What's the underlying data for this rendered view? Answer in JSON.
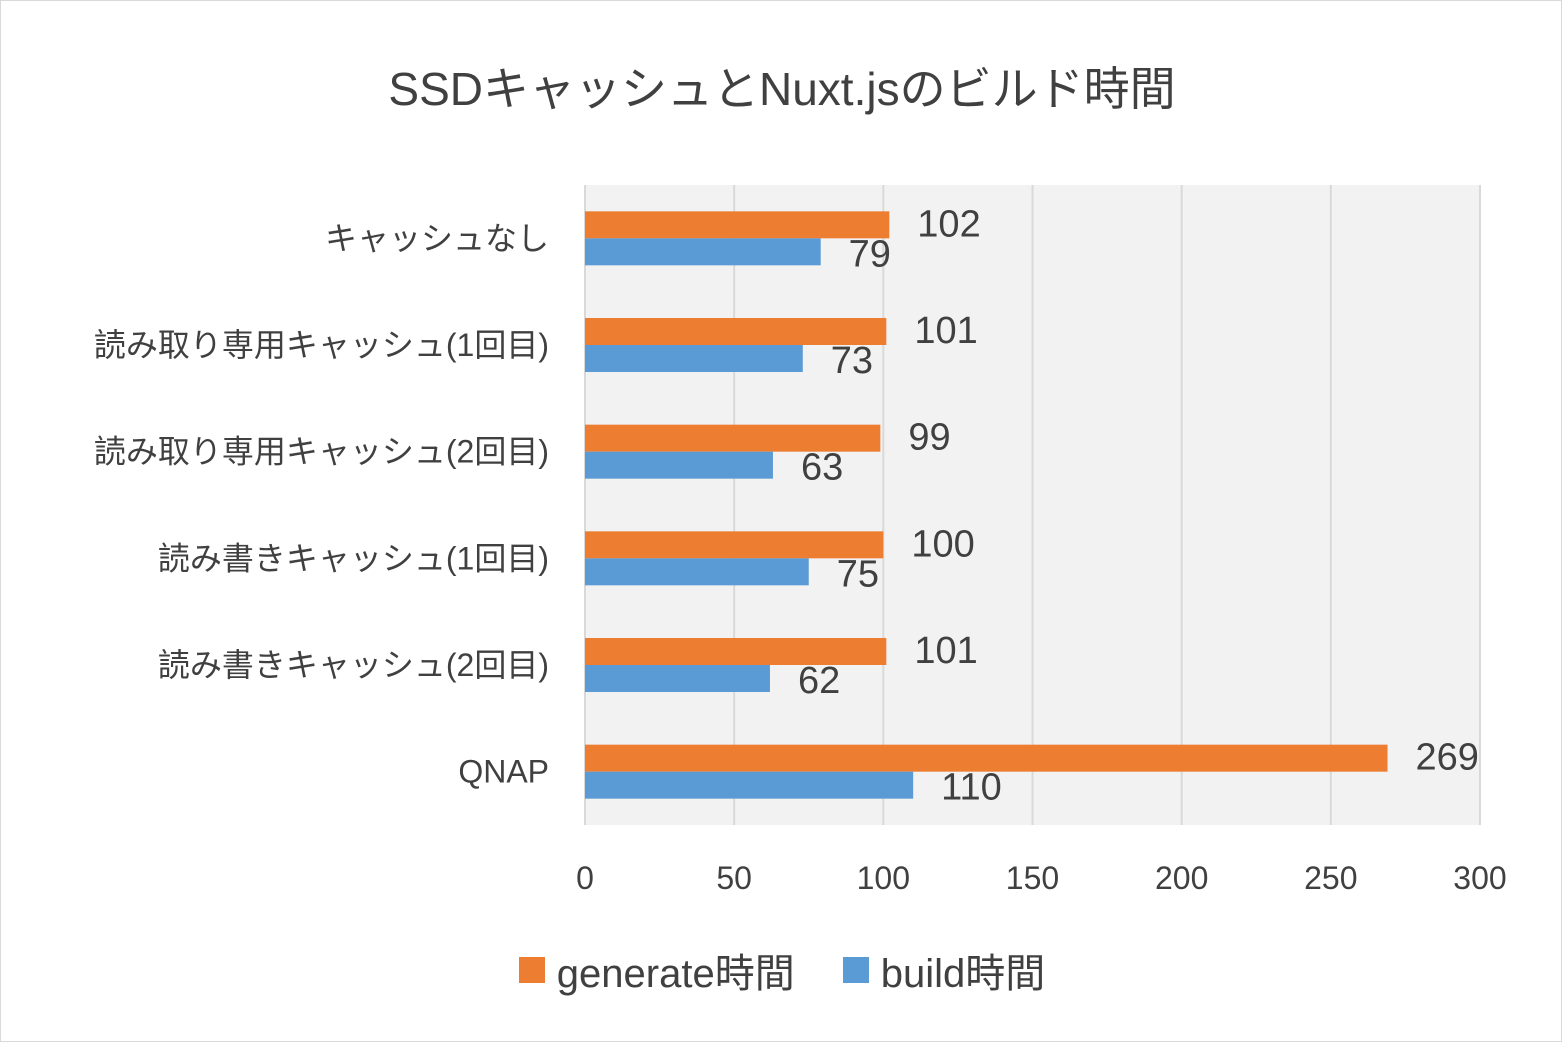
{
  "chart_data": {
    "type": "bar",
    "orientation": "horizontal",
    "title": "SSDキャッシュとNuxt.jsのビルド時間",
    "categories": [
      "キャッシュなし",
      "読み取り専用キャッシュ(1回目)",
      "読み取り専用キャッシュ(2回目)",
      "読み書きキャッシュ(1回目)",
      "読み書きキャッシュ(2回目)",
      "QNAP"
    ],
    "series": [
      {
        "name": "generate時間",
        "color": "#ed7d31",
        "values": [
          102,
          101,
          99,
          100,
          101,
          269
        ]
      },
      {
        "name": "build時間",
        "color": "#5b9bd5",
        "values": [
          79,
          73,
          63,
          75,
          62,
          110
        ]
      }
    ],
    "xlim": [
      0,
      300
    ],
    "xticks": [
      0,
      50,
      100,
      150,
      200,
      250,
      300
    ],
    "grid": true,
    "legend_position": "bottom",
    "plot_background": "#f2f2f2"
  }
}
